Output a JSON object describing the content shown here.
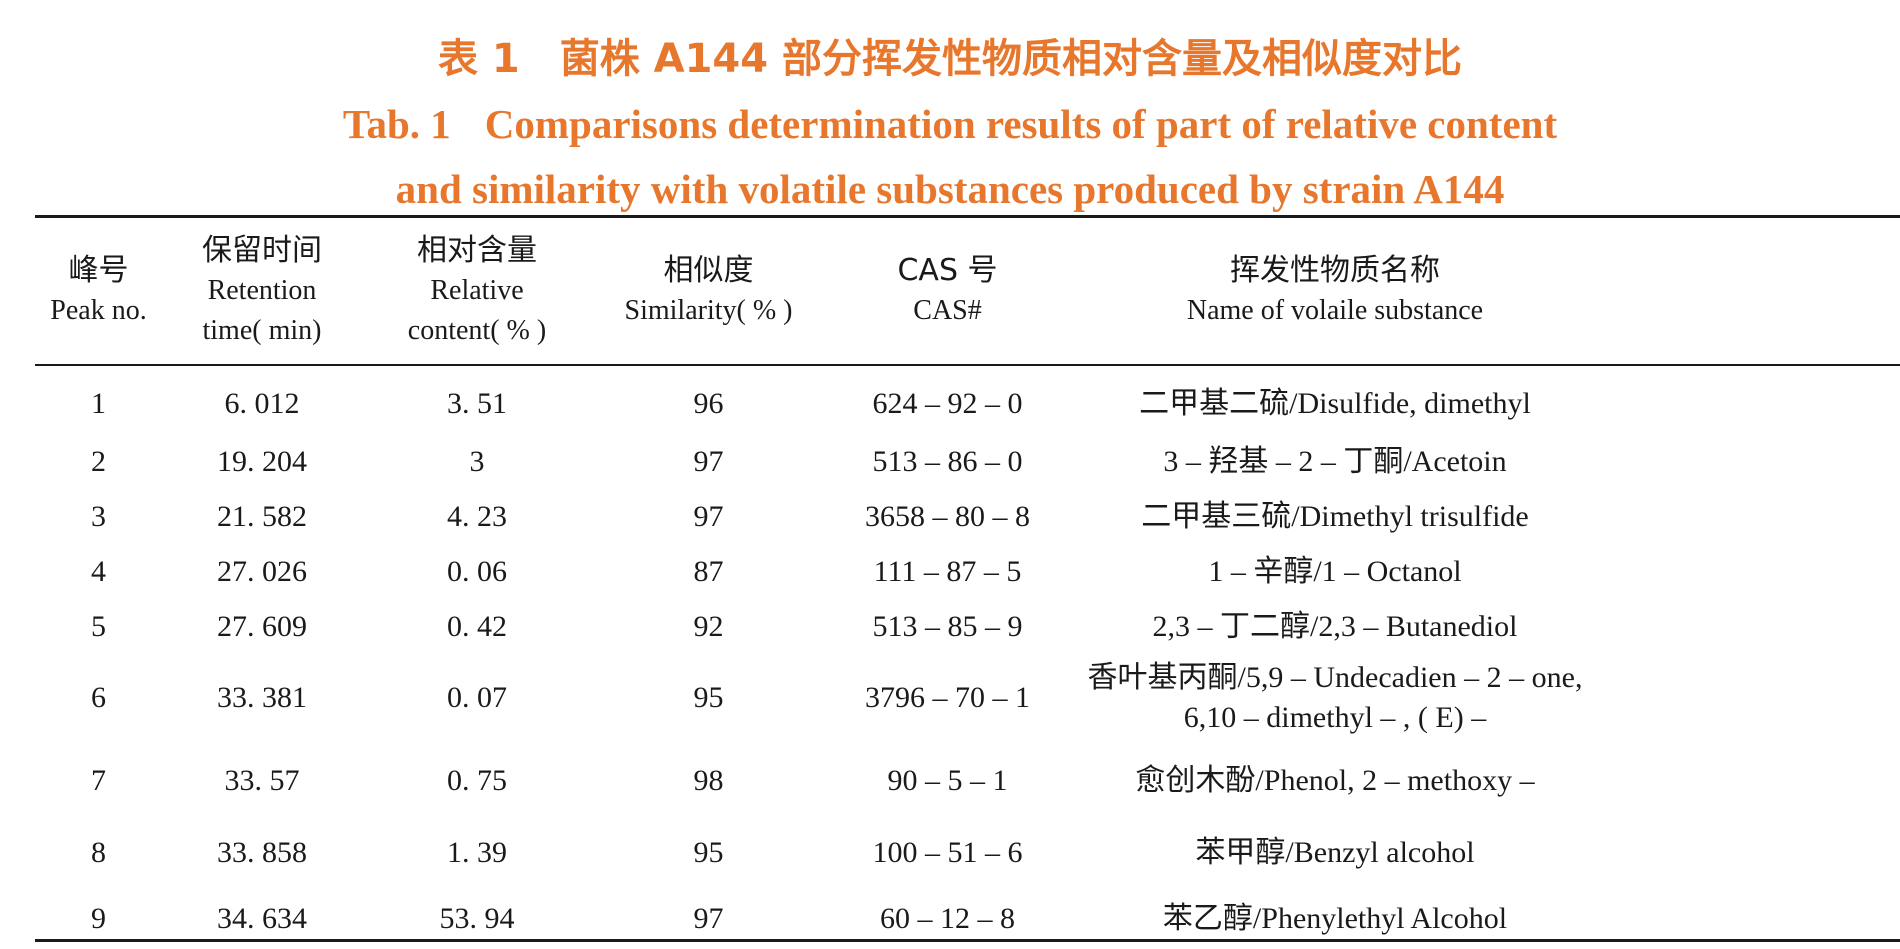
{
  "title": {
    "cn_label": "表 1",
    "cn_text": "菌株 A144 部分挥发性物质相对含量及相似度对比",
    "en_label": "Tab. 1",
    "en_line1": "Comparisons determination results of part of relative content",
    "en_line2": "and similarity with volatile substances produced by strain A144"
  },
  "columns": [
    {
      "cn": "峰号",
      "en": "Peak no."
    },
    {
      "cn": "保留时间",
      "en1": "Retention",
      "en2": "time( min)"
    },
    {
      "cn": "相对含量",
      "en1": "Relative",
      "en2": "content( % )"
    },
    {
      "cn": "相似度",
      "en": "Similarity( % )"
    },
    {
      "cn": "CAS 号",
      "en": "CAS#"
    },
    {
      "cn": "挥发性物质名称",
      "en": "Name of volaile substance"
    }
  ],
  "rows": [
    {
      "peak": "1",
      "rt": "6. 012",
      "content": "3. 51",
      "similarity": "96",
      "cas": "624 – 92 – 0",
      "name": "二甲基二硫/Disulfide, dimethyl"
    },
    {
      "peak": "2",
      "rt": "19. 204",
      "content": "3",
      "similarity": "97",
      "cas": "513 – 86 – 0",
      "name": "3 – 羟基 – 2 – 丁酮/Acetoin"
    },
    {
      "peak": "3",
      "rt": "21. 582",
      "content": "4. 23",
      "similarity": "97",
      "cas": "3658 – 80 – 8",
      "name": "二甲基三硫/Dimethyl trisulfide"
    },
    {
      "peak": "4",
      "rt": "27. 026",
      "content": "0. 06",
      "similarity": "87",
      "cas": "111 – 87 – 5",
      "name": "1 – 辛醇/1 – Octanol"
    },
    {
      "peak": "5",
      "rt": "27. 609",
      "content": "0. 42",
      "similarity": "92",
      "cas": "513 – 85 – 9",
      "name": "2,3 – 丁二醇/2,3 – Butanediol"
    },
    {
      "peak": "6",
      "rt": "33. 381",
      "content": "0. 07",
      "similarity": "95",
      "cas": "3796 – 70 – 1",
      "name": "香叶基丙酮/5,9 – Undecadien – 2 – one,",
      "name2": "6,10 – dimethyl – , ( E) –"
    },
    {
      "peak": "7",
      "rt": "33. 57",
      "content": "0. 75",
      "similarity": "98",
      "cas": "90 – 5 – 1",
      "name": "愈创木酚/Phenol, 2 – methoxy –"
    },
    {
      "peak": "8",
      "rt": "33. 858",
      "content": "1. 39",
      "similarity": "95",
      "cas": "100 – 51 – 6",
      "name": "苯甲醇/Benzyl alcohol"
    },
    {
      "peak": "9",
      "rt": "34. 634",
      "content": "53. 94",
      "similarity": "97",
      "cas": "60 – 12 – 8",
      "name": "苯乙醇/Phenylethyl Alcohol"
    }
  ]
}
